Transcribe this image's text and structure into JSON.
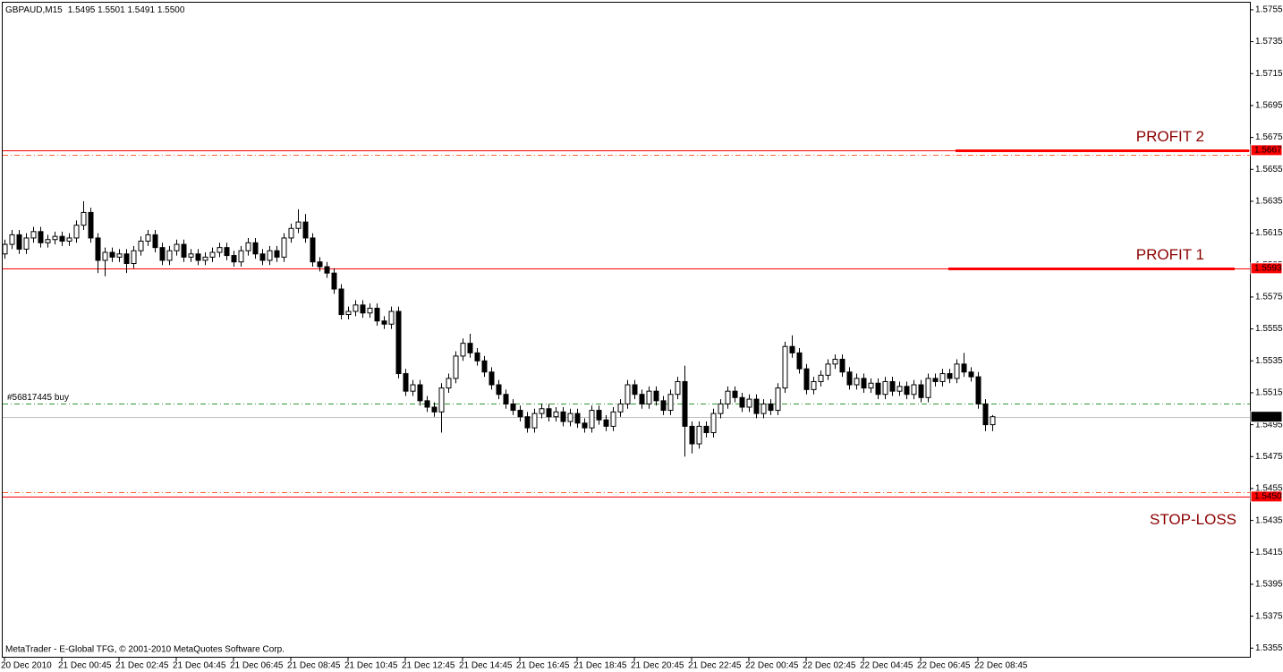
{
  "chart_data": {
    "type": "candlestick",
    "title": "GBPAUD,M15",
    "quote": "1.5495 1.5501 1.5491 1.5500",
    "footer": "MetaTrader - E-Global TFG, © 2001-2010 MetaQuotes Software Corp.",
    "categories": [
      "20 Dec 2010",
      null,
      null,
      null,
      null,
      null,
      null,
      null,
      "21 Dec 00:45",
      null,
      null,
      null,
      null,
      null,
      null,
      null,
      "21 Dec 02:45",
      null,
      null,
      null,
      null,
      null,
      null,
      null,
      "21 Dec 04:45",
      null,
      null,
      null,
      null,
      null,
      null,
      null,
      "21 Dec 06:45",
      null,
      null,
      null,
      null,
      null,
      null,
      null,
      "21 Dec 08:45",
      null,
      null,
      null,
      null,
      null,
      null,
      null,
      "21 Dec 10:45",
      null,
      null,
      null,
      null,
      null,
      null,
      null,
      "21 Dec 12:45",
      null,
      null,
      null,
      null,
      null,
      null,
      null,
      "21 Dec 14:45",
      null,
      null,
      null,
      null,
      null,
      null,
      null,
      "21 Dec 16:45",
      null,
      null,
      null,
      null,
      null,
      null,
      null,
      "21 Dec 18:45",
      null,
      null,
      null,
      null,
      null,
      null,
      null,
      "21 Dec 20:45",
      null,
      null,
      null,
      null,
      null,
      null,
      null,
      "21 Dec 22:45",
      null,
      null,
      null,
      null,
      null,
      null,
      null,
      "22 Dec 00:45",
      null,
      null,
      null,
      null,
      null,
      null,
      null,
      "22 Dec 02:45",
      null,
      null,
      null,
      null,
      null,
      null,
      null,
      "22 Dec 04:45",
      null,
      null,
      null,
      null,
      null,
      null,
      null,
      "22 Dec 06:45",
      null,
      null,
      null,
      null,
      null,
      null,
      null,
      "22 Dec 08:45",
      null,
      null
    ],
    "open": [
      1.5602,
      1.5608,
      1.5614,
      1.5605,
      1.5612,
      1.5616,
      1.5609,
      1.5611,
      1.5613,
      1.561,
      1.5612,
      1.562,
      1.5628,
      1.5612,
      1.5598,
      1.5603,
      1.56,
      1.5602,
      1.5596,
      1.5604,
      1.561,
      1.5614,
      1.5606,
      1.5598,
      1.5604,
      1.5608,
      1.56,
      1.5602,
      1.5598,
      1.56,
      1.5603,
      1.5606,
      1.5601,
      1.5597,
      1.5604,
      1.5609,
      1.5602,
      1.5598,
      1.5604,
      1.56,
      1.5612,
      1.5618,
      1.5622,
      1.5612,
      1.5597,
      1.5594,
      1.559,
      1.558,
      1.5564,
      1.5566,
      1.557,
      1.5565,
      1.5568,
      1.556,
      1.5558,
      1.5566,
      1.5527,
      1.5516,
      1.552,
      1.551,
      1.5506,
      1.5503,
      1.5518,
      1.5524,
      1.5538,
      1.5546,
      1.554,
      1.5535,
      1.5528,
      1.552,
      1.5514,
      1.5508,
      1.5504,
      1.55,
      1.5493,
      1.5502,
      1.5505,
      1.55,
      1.5503,
      1.5497,
      1.5502,
      1.5496,
      1.5493,
      1.5504,
      1.5498,
      1.5494,
      1.5503,
      1.5508,
      1.552,
      1.5514,
      1.5508,
      1.5516,
      1.551,
      1.5504,
      1.5514,
      1.5522,
      1.5494,
      1.5483,
      1.5494,
      1.549,
      1.5502,
      1.5508,
      1.5516,
      1.5512,
      1.5506,
      1.5511,
      1.5502,
      1.5508,
      1.5504,
      1.5518,
      1.5544,
      1.554,
      1.553,
      1.5517,
      1.5522,
      1.5526,
      1.5533,
      1.5536,
      1.5528,
      1.552,
      1.5524,
      1.5518,
      1.5521,
      1.5514,
      1.5522,
      1.5516,
      1.5519,
      1.5514,
      1.552,
      1.5512,
      1.5524,
      1.5522,
      1.5527,
      1.5524,
      1.5533,
      1.5528,
      1.5525,
      1.5508,
      1.5495
    ],
    "high": [
      1.5611,
      1.5617,
      1.5617,
      1.5615,
      1.5619,
      1.5619,
      1.5614,
      1.5616,
      1.5616,
      1.5615,
      1.5623,
      1.5635,
      1.5631,
      1.5615,
      1.5606,
      1.5606,
      1.5605,
      1.5605,
      1.5607,
      1.5613,
      1.5617,
      1.5617,
      1.5609,
      1.5607,
      1.5611,
      1.5611,
      1.5605,
      1.5605,
      1.5603,
      1.5606,
      1.5609,
      1.5609,
      1.5604,
      1.5607,
      1.5612,
      1.5612,
      1.5605,
      1.5607,
      1.5607,
      1.5615,
      1.5621,
      1.563,
      1.5627,
      1.5615,
      1.56,
      1.5597,
      1.5593,
      1.5583,
      1.5569,
      1.5573,
      1.5573,
      1.5571,
      1.5571,
      1.5563,
      1.5569,
      1.5569,
      1.553,
      1.5523,
      1.5523,
      1.5513,
      1.5509,
      1.5521,
      1.5527,
      1.5541,
      1.5549,
      1.5552,
      1.5543,
      1.5538,
      1.5531,
      1.5523,
      1.5517,
      1.5511,
      1.5507,
      1.5503,
      1.5505,
      1.5508,
      1.5508,
      1.5506,
      1.5506,
      1.5505,
      1.5505,
      1.5499,
      1.5507,
      1.5507,
      1.5501,
      1.5506,
      1.5511,
      1.5523,
      1.5523,
      1.5517,
      1.5519,
      1.5519,
      1.5513,
      1.5517,
      1.5525,
      1.5532,
      1.5497,
      1.5497,
      1.5497,
      1.5505,
      1.5511,
      1.5519,
      1.5519,
      1.5515,
      1.5514,
      1.5514,
      1.5511,
      1.5511,
      1.5521,
      1.5547,
      1.5551,
      1.5543,
      1.5533,
      1.5525,
      1.5529,
      1.5536,
      1.5539,
      1.5539,
      1.5531,
      1.5527,
      1.5527,
      1.5524,
      1.5524,
      1.5525,
      1.5525,
      1.5522,
      1.5522,
      1.5523,
      1.5523,
      1.5527,
      1.5527,
      1.553,
      1.553,
      1.5536,
      1.554,
      1.5531,
      1.5528,
      1.5511,
      1.5501
    ],
    "low": [
      1.5599,
      1.5605,
      1.5602,
      1.5602,
      1.5609,
      1.5606,
      1.5606,
      1.5608,
      1.5607,
      1.5607,
      1.5609,
      1.5617,
      1.5609,
      1.559,
      1.5588,
      1.5597,
      1.5597,
      1.559,
      1.5593,
      1.5601,
      1.5607,
      1.5603,
      1.5595,
      1.5595,
      1.5601,
      1.5597,
      1.5597,
      1.5595,
      1.5595,
      1.5597,
      1.56,
      1.5598,
      1.5594,
      1.5594,
      1.5601,
      1.5599,
      1.5595,
      1.5595,
      1.5597,
      1.5597,
      1.5609,
      1.5615,
      1.5609,
      1.5594,
      1.5591,
      1.5587,
      1.5577,
      1.5561,
      1.5561,
      1.5563,
      1.5562,
      1.5562,
      1.5557,
      1.5555,
      1.5555,
      1.5524,
      1.5513,
      1.5513,
      1.5507,
      1.5503,
      1.55,
      1.549,
      1.5515,
      1.5521,
      1.5535,
      1.5537,
      1.5532,
      1.5525,
      1.5517,
      1.5511,
      1.5505,
      1.5501,
      1.5497,
      1.549,
      1.549,
      1.5499,
      1.5497,
      1.5497,
      1.5494,
      1.5494,
      1.5493,
      1.549,
      1.549,
      1.5495,
      1.5491,
      1.5491,
      1.55,
      1.5505,
      1.5511,
      1.5505,
      1.5505,
      1.5507,
      1.5501,
      1.5501,
      1.5511,
      1.5475,
      1.5477,
      1.548,
      1.5487,
      1.5487,
      1.5499,
      1.5505,
      1.5509,
      1.5503,
      1.5503,
      1.5499,
      1.5499,
      1.5501,
      1.5501,
      1.5515,
      1.5537,
      1.5527,
      1.5514,
      1.5514,
      1.5519,
      1.5523,
      1.553,
      1.5525,
      1.5517,
      1.5517,
      1.5515,
      1.5515,
      1.5511,
      1.5511,
      1.5513,
      1.5513,
      1.5511,
      1.5511,
      1.5509,
      1.5509,
      1.5519,
      1.5519,
      1.5521,
      1.5521,
      1.5525,
      1.5522,
      1.5505,
      1.5491,
      1.5491
    ],
    "close": [
      1.5608,
      1.5614,
      1.5605,
      1.5612,
      1.5616,
      1.5609,
      1.5611,
      1.5613,
      1.561,
      1.5612,
      1.562,
      1.5628,
      1.5612,
      1.5598,
      1.5603,
      1.56,
      1.5602,
      1.5596,
      1.5604,
      1.561,
      1.5614,
      1.5606,
      1.5598,
      1.5604,
      1.5608,
      1.56,
      1.5602,
      1.5598,
      1.56,
      1.5603,
      1.5606,
      1.5601,
      1.5597,
      1.5604,
      1.5609,
      1.5602,
      1.5598,
      1.5604,
      1.56,
      1.5612,
      1.5618,
      1.5622,
      1.5612,
      1.5597,
      1.5594,
      1.559,
      1.558,
      1.5564,
      1.5566,
      1.557,
      1.5565,
      1.5568,
      1.556,
      1.5558,
      1.5566,
      1.5527,
      1.5516,
      1.552,
      1.551,
      1.5506,
      1.5503,
      1.5518,
      1.5524,
      1.5538,
      1.5546,
      1.554,
      1.5535,
      1.5528,
      1.552,
      1.5514,
      1.5508,
      1.5504,
      1.55,
      1.5493,
      1.5502,
      1.5505,
      1.55,
      1.5503,
      1.5497,
      1.5502,
      1.5496,
      1.5493,
      1.5504,
      1.5498,
      1.5494,
      1.5503,
      1.5508,
      1.552,
      1.5514,
      1.5508,
      1.5516,
      1.551,
      1.5504,
      1.5514,
      1.5522,
      1.5494,
      1.5483,
      1.5494,
      1.549,
      1.5502,
      1.5508,
      1.5516,
      1.5512,
      1.5506,
      1.5511,
      1.5502,
      1.5508,
      1.5504,
      1.5518,
      1.5544,
      1.554,
      1.553,
      1.5517,
      1.5522,
      1.5526,
      1.5533,
      1.5536,
      1.5528,
      1.552,
      1.5524,
      1.5518,
      1.5521,
      1.5514,
      1.5522,
      1.5516,
      1.5519,
      1.5514,
      1.552,
      1.5512,
      1.5524,
      1.5522,
      1.5527,
      1.5524,
      1.5533,
      1.5528,
      1.5525,
      1.5508,
      1.5495,
      1.55
    ],
    "up_color": "#ffffff",
    "down_color": "#000000",
    "ylim": [
      1.5349,
      1.576
    ],
    "yticks": [
      1.5755,
      1.5735,
      1.5715,
      1.5695,
      1.5675,
      1.5655,
      1.5635,
      1.5615,
      1.5595,
      1.5575,
      1.5555,
      1.5535,
      1.5515,
      1.5495,
      1.5475,
      1.5455,
      1.5435,
      1.5415,
      1.5395,
      1.5375,
      1.5355
    ],
    "levels": [
      {
        "value": 1.5667,
        "color": "#ff0000",
        "dash": "solid",
        "flag": true,
        "name": "PROFIT 2",
        "name_position": "right-above"
      },
      {
        "value": 1.5664,
        "color": "#ff6633",
        "dash": "dashdot"
      },
      {
        "value": 1.5593,
        "color": "#ff0000",
        "dash": "solid",
        "flag": true,
        "name": "PROFIT 1",
        "name_position": "right-above"
      },
      {
        "value": 1.5508,
        "color": "#339933",
        "dash": "dashdot",
        "name": "#56817445 buy",
        "name_position": "left-above"
      },
      {
        "value": 1.55,
        "label": "1.5500",
        "color": "#c0c0c0",
        "dash": "solid",
        "flag": true
      },
      {
        "value": 1.5453,
        "color": "#ff6633",
        "dash": "dashdot"
      },
      {
        "value": 1.545,
        "label": "1.5450",
        "color": "#ff0000",
        "dash": "solid",
        "flag": true,
        "name": "STOP-LOSS",
        "name_position": "right-below"
      }
    ]
  }
}
